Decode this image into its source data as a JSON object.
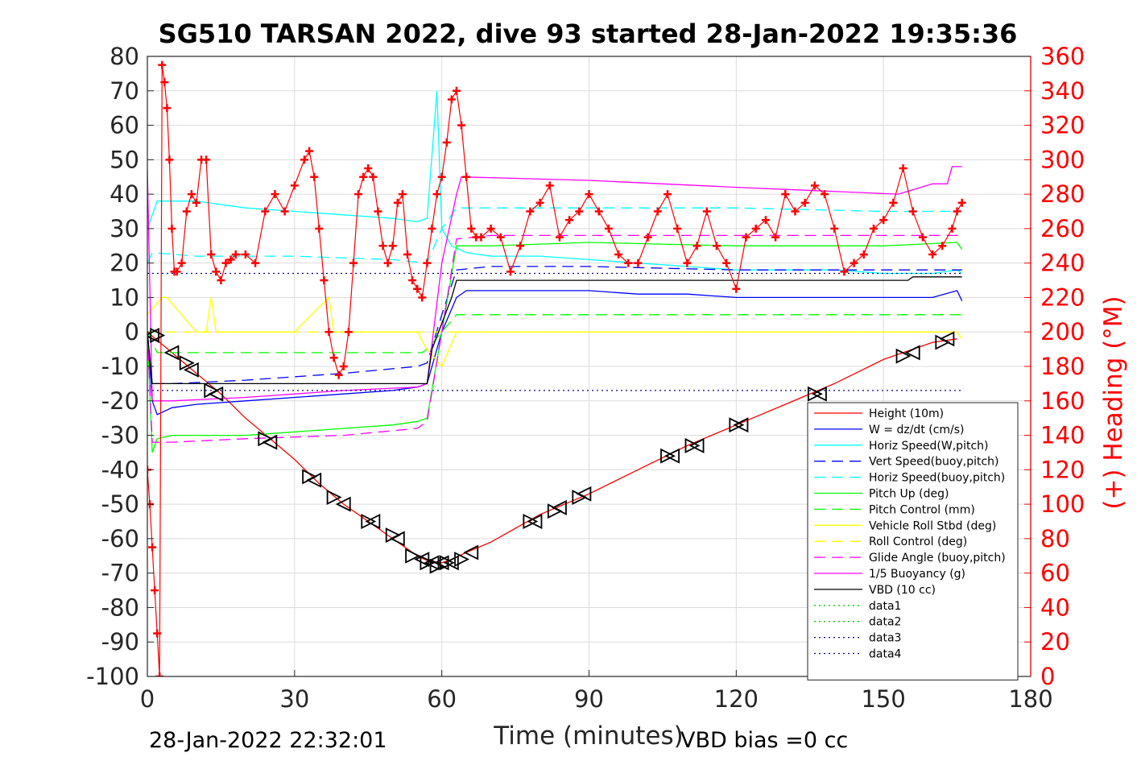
{
  "chart_data": {
    "type": "line",
    "title": "SG510 TARSAN 2022, dive 93 started 28-Jan-2022 19:35:36",
    "xlabel": "Time (minutes)",
    "ylabel": "",
    "ylabel_right": "(+) Heading (°M)",
    "xlim": [
      0,
      180
    ],
    "ylim": [
      -100,
      80
    ],
    "ylim_right": [
      0,
      360
    ],
    "x_ticks": [
      "0",
      "30",
      "60",
      "90",
      "120",
      "150",
      "180"
    ],
    "y_ticks": [
      "80",
      "70",
      "60",
      "50",
      "40",
      "30",
      "20",
      "10",
      "0",
      "-10",
      "-20",
      "-30",
      "-40",
      "-50",
      "-60",
      "-70",
      "-80",
      "-90",
      "-100"
    ],
    "y_ticks_right": [
      "360",
      "340",
      "320",
      "300",
      "280",
      "260",
      "240",
      "220",
      "200",
      "180",
      "160",
      "140",
      "120",
      "100",
      "80",
      "60",
      "40",
      "20",
      "0"
    ],
    "grid": true,
    "legend_position": "bottom-right",
    "footer_left": "28-Jan-2022 22:32:01",
    "footer_right": "VBD bias =0 cc",
    "series": [
      {
        "name": "Height (10m)",
        "color": "#ff0000",
        "style": "solid",
        "x": [
          0,
          5,
          10,
          15,
          20,
          25,
          30,
          35,
          40,
          45,
          50,
          55,
          58,
          60,
          62,
          65,
          70,
          80,
          90,
          100,
          110,
          120,
          130,
          140,
          150,
          160,
          165
        ],
        "values": [
          0,
          -6,
          -12,
          -18,
          -25,
          -31,
          -37,
          -44,
          -50,
          -55,
          -60,
          -65,
          -67,
          -67,
          -66,
          -64,
          -61,
          -53,
          -47,
          -40,
          -33,
          -27,
          -21,
          -15,
          -8,
          -3,
          -2
        ]
      },
      {
        "name": "W = dz/dt (cm/s)",
        "color": "#0000ff",
        "style": "solid",
        "x": [
          0,
          1,
          2,
          5,
          10,
          20,
          30,
          40,
          50,
          55,
          57,
          60,
          63,
          65,
          70,
          80,
          90,
          100,
          110,
          120,
          130,
          140,
          150,
          160,
          165,
          166
        ],
        "values": [
          0,
          -20,
          -24,
          -22,
          -21,
          -20,
          -19,
          -18,
          -17,
          -16,
          -15,
          0,
          10,
          12,
          12,
          12,
          12,
          11,
          11,
          10,
          10,
          10,
          10,
          10,
          12,
          9
        ]
      },
      {
        "name": "Horiz Speed(W,pitch)",
        "color": "#00ffff",
        "style": "solid",
        "x": [
          0,
          2,
          5,
          10,
          20,
          30,
          40,
          50,
          55,
          57,
          59,
          60,
          62,
          65,
          70,
          80,
          90,
          100,
          110,
          120,
          130,
          140,
          150,
          160,
          165,
          166
        ],
        "values": [
          30,
          38,
          38,
          38,
          36,
          35,
          34,
          33,
          32,
          33,
          70,
          30,
          25,
          23,
          22,
          22,
          21,
          20,
          19,
          18,
          18,
          18,
          17,
          17,
          18,
          17
        ]
      },
      {
        "name": "Vert Speed(buoy,pitch)",
        "color": "#0000ff",
        "style": "dash",
        "x": [
          0,
          1,
          5,
          20,
          40,
          55,
          57,
          60,
          63,
          70,
          90,
          120,
          150,
          166
        ],
        "values": [
          0,
          -15,
          -15,
          -14,
          -12,
          -10,
          -9,
          5,
          18,
          19,
          19,
          18,
          18,
          18
        ]
      },
      {
        "name": "Horiz Speed(buoy,pitch)",
        "color": "#00ffff",
        "style": "dash",
        "x": [
          0,
          1,
          10,
          30,
          50,
          57,
          60,
          63,
          70,
          90,
          120,
          150,
          166
        ],
        "values": [
          20,
          23,
          22,
          22,
          21,
          20,
          30,
          36,
          36,
          36,
          36,
          35,
          35
        ]
      },
      {
        "name": "Pitch Up (deg)",
        "color": "#00ff00",
        "style": "solid",
        "x": [
          0,
          1,
          2,
          5,
          10,
          20,
          30,
          40,
          50,
          55,
          57,
          60,
          63,
          70,
          90,
          120,
          150,
          165,
          166
        ],
        "values": [
          0,
          -35,
          -31,
          -30,
          -30,
          -30,
          -29,
          -28,
          -27,
          -26,
          -25,
          0,
          25,
          25,
          26,
          25,
          25,
          26,
          24
        ]
      },
      {
        "name": "Pitch Control (mm)",
        "color": "#00ff00",
        "style": "dash",
        "x": [
          0,
          2,
          30,
          56,
          57,
          63,
          100,
          166
        ],
        "values": [
          0,
          -6,
          -6,
          -6,
          -5,
          5,
          5,
          5
        ]
      },
      {
        "name": "Vehicle Roll Stbd (deg)",
        "color": "#ffff00",
        "style": "solid",
        "x": [
          0,
          3,
          4,
          10,
          12,
          13,
          14,
          30,
          37,
          38,
          40,
          50,
          55,
          57,
          60,
          63,
          80,
          100,
          130,
          160,
          165,
          166
        ],
        "values": [
          5,
          10,
          10,
          0,
          0,
          10,
          0,
          0,
          10,
          0,
          0,
          0,
          0,
          -5,
          -10,
          0,
          0,
          0,
          0,
          0,
          0,
          -2
        ]
      },
      {
        "name": "Roll Control (deg)",
        "color": "#ffff00",
        "style": "dash",
        "x": [
          0,
          166
        ],
        "values": [
          0,
          0
        ]
      },
      {
        "name": "Glide Angle (buoy,pitch)",
        "color": "#ff00ff",
        "style": "dash",
        "x": [
          0,
          1,
          5,
          20,
          40,
          55,
          57,
          60,
          63,
          70,
          90,
          120,
          150,
          166
        ],
        "values": [
          0,
          -32,
          -32,
          -31,
          -30,
          -28,
          -26,
          0,
          27,
          28,
          28,
          28,
          28,
          28
        ]
      },
      {
        "name": "1/5 Buoyancy (g)",
        "color": "#ff00ff",
        "style": "solid",
        "x": [
          0,
          1,
          5,
          20,
          40,
          55,
          57,
          60,
          63,
          64,
          90,
          120,
          153,
          160,
          163,
          164,
          166
        ],
        "values": [
          47,
          -20,
          -20,
          -19,
          -17,
          -16,
          -15,
          20,
          40,
          45,
          44,
          42,
          40,
          43,
          43,
          48,
          48
        ]
      },
      {
        "name": "VBD (10 cc)",
        "color": "#000000",
        "style": "solid",
        "x": [
          0,
          1,
          20,
          56,
          57,
          58,
          62,
          63,
          100,
          155,
          156,
          166
        ],
        "values": [
          0,
          -15,
          -15,
          -15,
          -15,
          -5,
          10,
          15,
          15,
          15,
          16,
          16
        ]
      },
      {
        "name": "data1",
        "color": "#00cc00",
        "style": "dot",
        "x": [],
        "values": []
      },
      {
        "name": "data2",
        "color": "#00cc00",
        "style": "dot",
        "x": [],
        "values": []
      },
      {
        "name": "data3",
        "color": "#00008b",
        "style": "dot",
        "x": [
          0,
          166
        ],
        "values": [
          -17,
          -17
        ]
      },
      {
        "name": "data4",
        "color": "#00008b",
        "style": "dot",
        "x": [
          0,
          166
        ],
        "values": [
          17,
          17
        ]
      }
    ],
    "heading_series": {
      "color": "#ff0000",
      "marker": "+",
      "axis": "right",
      "x": [
        0,
        0.5,
        1,
        1.5,
        2,
        2.5,
        3,
        3.5,
        4,
        4.5,
        5,
        5.5,
        6,
        7,
        8,
        9,
        10,
        11,
        12,
        13,
        14,
        15,
        16,
        17,
        18,
        20,
        22,
        24,
        26,
        28,
        30,
        32,
        33,
        34,
        35,
        36,
        37,
        38,
        39,
        40,
        41,
        42,
        43,
        44,
        45,
        46,
        47,
        48,
        49,
        50,
        51,
        52,
        53,
        54,
        55,
        56,
        57,
        58,
        59,
        60,
        61,
        62,
        63,
        64,
        65,
        66,
        67,
        68,
        70,
        72,
        74,
        76,
        78,
        80,
        82,
        84,
        86,
        88,
        90,
        92,
        94,
        96,
        98,
        100,
        102,
        104,
        106,
        108,
        110,
        112,
        114,
        116,
        118,
        120,
        122,
        124,
        126,
        128,
        130,
        132,
        134,
        136,
        138,
        140,
        142,
        144,
        146,
        148,
        150,
        152,
        154,
        156,
        158,
        160,
        162,
        164,
        165,
        166
      ],
      "values": [
        120,
        100,
        75,
        50,
        25,
        0,
        355,
        345,
        330,
        300,
        260,
        235,
        235,
        240,
        270,
        280,
        275,
        300,
        300,
        245,
        235,
        230,
        240,
        242,
        245,
        245,
        240,
        270,
        280,
        270,
        285,
        300,
        305,
        290,
        260,
        230,
        200,
        185,
        175,
        180,
        200,
        240,
        280,
        290,
        295,
        290,
        270,
        250,
        240,
        250,
        275,
        280,
        245,
        230,
        225,
        220,
        240,
        260,
        280,
        290,
        310,
        335,
        340,
        320,
        290,
        260,
        255,
        255,
        260,
        255,
        235,
        250,
        270,
        275,
        285,
        255,
        265,
        270,
        280,
        270,
        260,
        245,
        240,
        240,
        255,
        270,
        280,
        260,
        240,
        250,
        270,
        250,
        240,
        225,
        255,
        260,
        265,
        255,
        280,
        270,
        275,
        285,
        280,
        260,
        235,
        240,
        245,
        260,
        265,
        275,
        295,
        270,
        255,
        245,
        250,
        260,
        270,
        275
      ]
    },
    "markers": {
      "color": "#000000",
      "shape": "triangle",
      "x": [
        1,
        2,
        5,
        8,
        9,
        13,
        14,
        24,
        25,
        33,
        34,
        38,
        40,
        45,
        46,
        50,
        51,
        54,
        56,
        57,
        58,
        59,
        60,
        61,
        62,
        64,
        66,
        78,
        79,
        83,
        84,
        88,
        89,
        106,
        107,
        111,
        112,
        120,
        121,
        136,
        137,
        154,
        156,
        162,
        163
      ],
      "values": [
        -1,
        -1,
        -6,
        -9,
        -11,
        -17,
        -18,
        -31,
        -32,
        -42,
        -43,
        -48,
        -50,
        -55,
        -55,
        -59,
        -60,
        -65,
        -66,
        -67,
        -67,
        -68,
        -67,
        -67,
        -67,
        -66,
        -64,
        -55,
        -55,
        -52,
        -51,
        -48,
        -47,
        -36,
        -36,
        -33,
        -33,
        -27,
        -27,
        -18,
        -18,
        -7,
        -6,
        -3,
        -2
      ]
    }
  }
}
